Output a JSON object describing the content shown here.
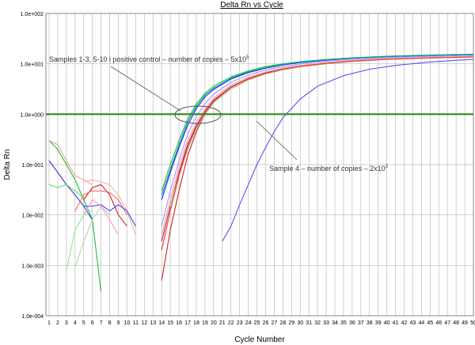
{
  "chart_data": {
    "type": "line",
    "title": "Delta Rn vs Cycle",
    "xlabel": "Cycle Number",
    "ylabel": "Delta Rn",
    "x_ticks": [
      1,
      2,
      3,
      4,
      5,
      6,
      7,
      8,
      9,
      10,
      11,
      12,
      13,
      14,
      15,
      16,
      17,
      18,
      19,
      20,
      21,
      22,
      23,
      24,
      25,
      26,
      27,
      28,
      29,
      30,
      31,
      32,
      33,
      34,
      35,
      36,
      37,
      38,
      39,
      40,
      41,
      42,
      43,
      44,
      45,
      46,
      47,
      48,
      49,
      50
    ],
    "xlim": [
      1,
      50
    ],
    "y_scale": "log",
    "ylim": [
      0.0001,
      100
    ],
    "y_ticks": [
      0.0001,
      0.001,
      0.01,
      0.1,
      1,
      10,
      100
    ],
    "y_tick_labels": [
      "1.0e-004",
      "1.0e-003",
      "1.0e-002",
      "1.0e-001",
      "1.0e+000",
      "1.0e+001",
      "1.0e+002"
    ],
    "grid": true,
    "threshold": {
      "value": 1,
      "color": "#2e8b1a"
    },
    "annotations": [
      {
        "text": "Samples 1-3, 5-10 i positive control – number of copies – 5x10",
        "superscript": "5"
      },
      {
        "text": "Sample 4 – number of copies – 2x10",
        "superscript": "3"
      }
    ],
    "series": [
      {
        "color": "#22bb33",
        "x": [
          14,
          15,
          16,
          17,
          18,
          19,
          20,
          22,
          24,
          26,
          28,
          30,
          33,
          36,
          40,
          45,
          50
        ],
        "y": [
          0.03,
          0.1,
          0.3,
          0.8,
          1.6,
          2.6,
          3.6,
          5.5,
          7.2,
          8.8,
          10,
          11,
          12.2,
          13.2,
          14.2,
          15,
          15.6
        ]
      },
      {
        "color": "#1a1aff",
        "x": [
          14,
          15,
          16,
          17,
          18,
          19,
          20,
          22,
          24,
          26,
          28,
          30,
          33,
          36,
          40,
          45,
          50
        ],
        "y": [
          0.02,
          0.07,
          0.22,
          0.6,
          1.3,
          2.2,
          3.1,
          5,
          6.7,
          8.2,
          9.5,
          10.6,
          11.8,
          12.9,
          13.9,
          14.7,
          15.3
        ]
      },
      {
        "color": "#00a0a0",
        "x": [
          14,
          15,
          16,
          17,
          18,
          19,
          20,
          22,
          24,
          26,
          28,
          30,
          33,
          36,
          40,
          45,
          50
        ],
        "y": [
          0.025,
          0.08,
          0.25,
          0.7,
          1.45,
          2.4,
          3.3,
          5.2,
          6.9,
          8.4,
          9.7,
          10.8,
          12,
          13,
          14,
          14.8,
          15.4
        ]
      },
      {
        "color": "#cc2222",
        "x": [
          14,
          15,
          16,
          17,
          18,
          19,
          20,
          22,
          24,
          26,
          28,
          30,
          33,
          36,
          40,
          45,
          50
        ],
        "y": [
          0.0005,
          0.005,
          0.03,
          0.15,
          0.45,
          1,
          1.7,
          3.2,
          4.8,
          6.3,
          7.6,
          8.8,
          10.1,
          11.2,
          12.3,
          13.1,
          13.7
        ]
      },
      {
        "color": "#aa2244",
        "x": [
          14,
          15,
          16,
          17,
          18,
          19,
          20,
          22,
          24,
          26,
          28,
          30,
          33,
          36,
          40,
          45,
          50
        ],
        "y": [
          0.003,
          0.015,
          0.07,
          0.25,
          0.6,
          1.15,
          1.9,
          3.5,
          5.1,
          6.6,
          7.9,
          9,
          10.3,
          11.4,
          12.4,
          13.2,
          13.8
        ]
      },
      {
        "color": "#ff9999",
        "x": [
          14,
          15,
          16,
          17,
          18,
          19,
          20,
          22,
          24,
          26,
          28,
          30,
          33,
          36,
          40,
          45,
          50
        ],
        "y": [
          0.004,
          0.02,
          0.09,
          0.3,
          0.7,
          1.3,
          2.1,
          3.8,
          5.4,
          6.9,
          8.2,
          9.3,
          10.6,
          11.7,
          12.7,
          13.5,
          14.1
        ]
      },
      {
        "color": "#99dd99",
        "x": [
          15,
          16,
          17,
          18,
          19,
          20,
          22,
          24,
          26,
          28,
          30,
          33,
          36,
          40,
          45,
          50
        ],
        "y": [
          0.015,
          0.06,
          0.2,
          0.5,
          1,
          1.7,
          3.2,
          4.8,
          6.3,
          7.6,
          8.7,
          10,
          11.1,
          12.2,
          13,
          13.6
        ]
      },
      {
        "color": "#9999ff",
        "x": [
          14,
          15,
          16,
          17,
          18,
          19,
          20,
          22,
          24,
          26,
          28,
          30,
          33,
          36,
          40,
          45,
          50
        ],
        "y": [
          0.006,
          0.03,
          0.12,
          0.4,
          0.9,
          1.6,
          2.5,
          4.3,
          6,
          7.5,
          8.8,
          9.9,
          11.2,
          12.3,
          13.3,
          14.1,
          14.7
        ]
      },
      {
        "color": "#ff3333",
        "x": [
          14,
          15,
          16,
          17,
          18,
          19,
          20,
          22,
          24,
          26,
          28,
          30,
          33,
          36,
          40,
          45,
          50
        ],
        "y": [
          0.002,
          0.012,
          0.06,
          0.22,
          0.55,
          1.05,
          1.8,
          3.4,
          5,
          6.5,
          7.8,
          8.9,
          10.2,
          11.3,
          12.3,
          13.1,
          13.7
        ]
      },
      {
        "color": "#5555ee",
        "x": [
          21,
          22,
          23,
          24,
          25,
          26,
          27,
          28,
          30,
          32,
          35,
          38,
          41,
          45,
          50
        ],
        "y": [
          0.003,
          0.006,
          0.016,
          0.04,
          0.1,
          0.22,
          0.45,
          0.85,
          2,
          3.6,
          5.8,
          7.8,
          9.3,
          10.9,
          12.3
        ]
      },
      {
        "color": "#22bb33",
        "x": [
          1,
          2,
          3,
          4,
          5,
          6,
          7
        ],
        "y": [
          0.3,
          0.2,
          0.1,
          0.05,
          0.02,
          0.008,
          0.0003
        ]
      },
      {
        "color": "#ff9999",
        "x": [
          1,
          2,
          3,
          4,
          5,
          6
        ],
        "y": [
          0.3,
          0.25,
          0.12,
          0.06,
          0.05,
          0.04
        ]
      },
      {
        "color": "#3333dd",
        "x": [
          1,
          2,
          3,
          4,
          5,
          6
        ],
        "y": [
          0.12,
          0.07,
          0.04,
          0.025,
          0.015,
          0.008
        ]
      },
      {
        "color": "#66dd66",
        "x": [
          1,
          2,
          3,
          4,
          5
        ],
        "y": [
          0.04,
          0.035,
          0.04,
          0.03,
          0.022
        ]
      },
      {
        "color": "#cc2222",
        "x": [
          5,
          6,
          7,
          8,
          9,
          10
        ],
        "y": [
          0.02,
          0.035,
          0.04,
          0.025,
          0.01,
          0.006
        ]
      },
      {
        "color": "#ffaaaa",
        "x": [
          5,
          6,
          7,
          8,
          9,
          10,
          11
        ],
        "y": [
          0.045,
          0.05,
          0.045,
          0.04,
          0.025,
          0.012,
          0.004
        ]
      },
      {
        "color": "#ff6666",
        "x": [
          4,
          5,
          6,
          7,
          8,
          9,
          10
        ],
        "y": [
          0.012,
          0.025,
          0.03,
          0.03,
          0.028,
          0.02,
          0.01
        ]
      },
      {
        "color": "#4444ee",
        "x": [
          5,
          6,
          7,
          8,
          9,
          10,
          11
        ],
        "y": [
          0.015,
          0.015,
          0.016,
          0.012,
          0.016,
          0.012,
          0.006
        ]
      },
      {
        "color": "#aaddaa",
        "x": [
          4,
          5,
          6,
          7,
          8
        ],
        "y": [
          0.0009,
          0.003,
          0.008,
          0.015,
          0.01
        ]
      },
      {
        "color": "#ff99cc",
        "x": [
          5,
          6,
          7,
          8,
          9
        ],
        "y": [
          0.01,
          0.02,
          0.015,
          0.008,
          0.004
        ]
      },
      {
        "color": "#88ee88",
        "x": [
          3,
          4,
          5,
          6
        ],
        "y": [
          0.0008,
          0.005,
          0.01,
          0.012
        ]
      }
    ]
  }
}
